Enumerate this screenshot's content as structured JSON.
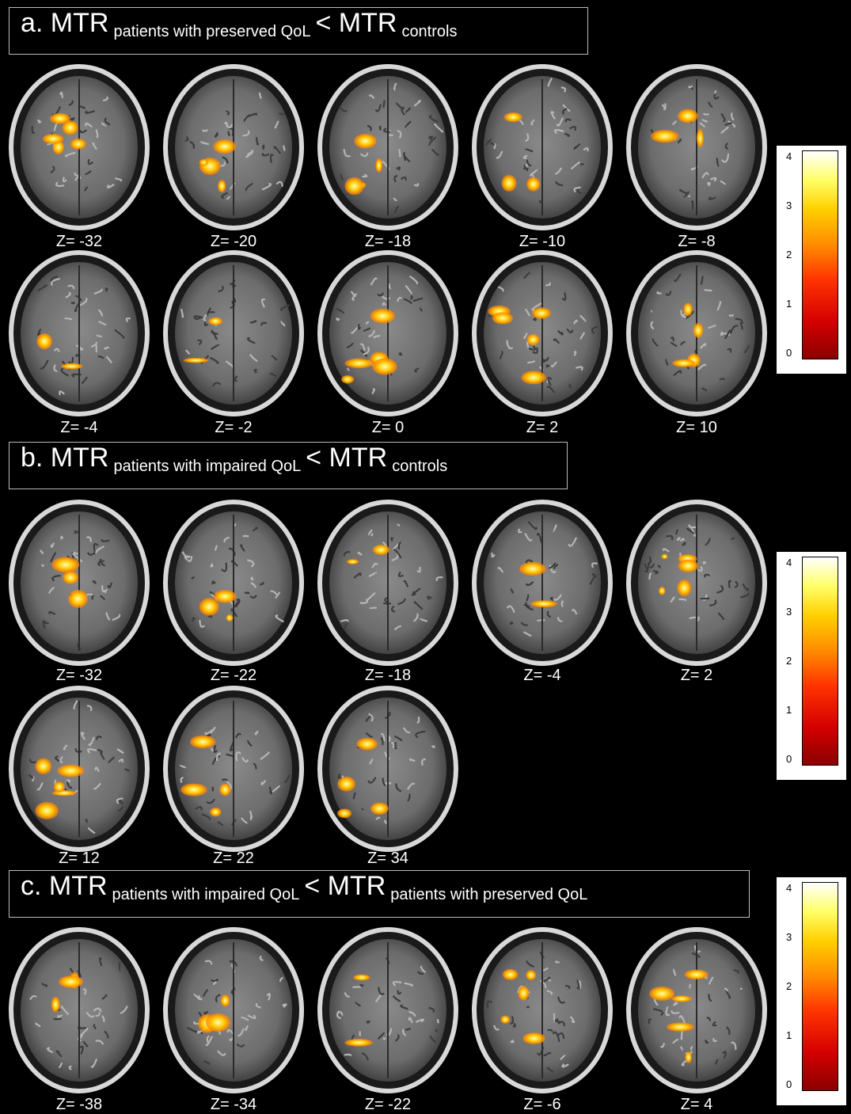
{
  "panels": [
    {
      "id": "a",
      "title": {
        "lead": "a. MTR",
        "sub1": "patients with preserved QoL",
        "mid": "< MTR",
        "sub2": "controls"
      },
      "slices": [
        "Z= -32",
        "Z= -20",
        "Z= -18",
        "Z= -10",
        "Z= -8",
        "Z= -4",
        "Z= -2",
        "Z= 0",
        "Z= 2",
        "Z= 10"
      ]
    },
    {
      "id": "b",
      "title": {
        "lead": "b. MTR",
        "sub1": "patients with impaired QoL",
        "mid": "< MTR",
        "sub2": "controls"
      },
      "slices": [
        "Z= -32",
        "Z= -22",
        "Z= -18",
        "Z= -4",
        "Z= 2",
        "Z= 12",
        "Z= 22",
        "Z= 34"
      ]
    },
    {
      "id": "c",
      "title": {
        "lead": "c. MTR",
        "sub1": "patients with impaired QoL",
        "mid": "< MTR",
        "sub2": "patients with preserved QoL"
      },
      "slices": [
        "Z= -38",
        "Z= -34",
        "Z= -22",
        "Z= -6",
        "Z= 4"
      ]
    }
  ],
  "colorbar": {
    "ticks": [
      "4",
      "3",
      "2",
      "1",
      "0"
    ]
  }
}
